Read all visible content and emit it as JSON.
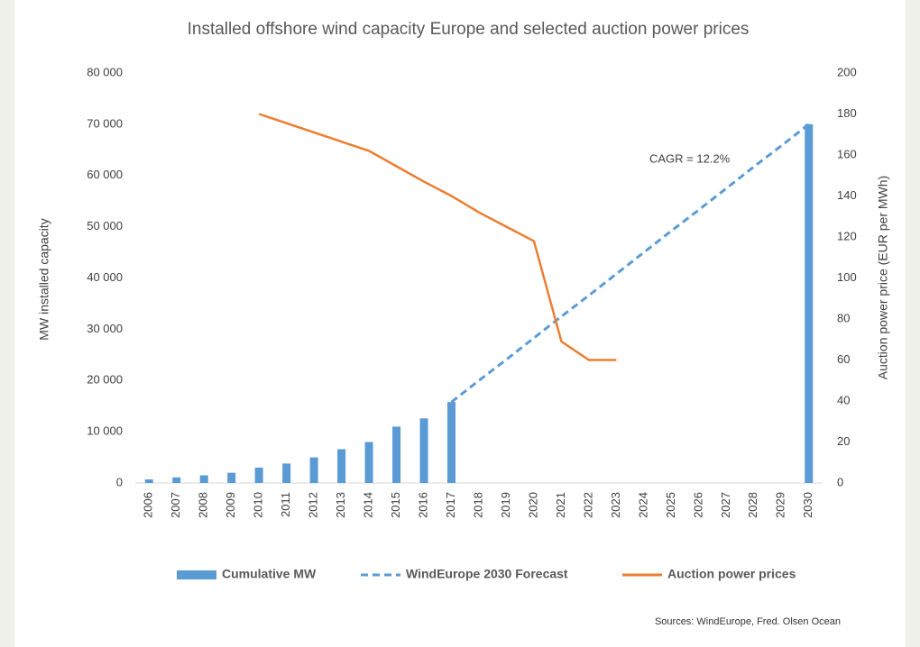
{
  "chart_data": {
    "type": "bar",
    "title": "Installed offshore wind capacity Europe and selected auction power prices",
    "y_label": "MW installed capacity",
    "y2_label": "Auction power price (EUR per MWh)",
    "annotation": "CAGR = 12.2%",
    "source": "Sources: WindEurope, Fred. Olsen Ocean",
    "categories": [
      "2006",
      "2007",
      "2008",
      "2009",
      "2010",
      "2011",
      "2012",
      "2013",
      "2014",
      "2015",
      "2016",
      "2017",
      "2018",
      "2019",
      "2020",
      "2021",
      "2022",
      "2023",
      "2024",
      "2025",
      "2026",
      "2027",
      "2028",
      "2029",
      "2030"
    ],
    "series": [
      {
        "name": "Cumulative MW",
        "type": "bar",
        "color": "#5b9bd5",
        "values": [
          700,
          1100,
          1500,
          2000,
          3000,
          3800,
          5000,
          6600,
          8000,
          11000,
          12600,
          15800,
          null,
          null,
          null,
          null,
          null,
          null,
          null,
          null,
          null,
          null,
          null,
          null,
          70000
        ]
      },
      {
        "name": "WindEurope 2030 Forecast",
        "type": "line",
        "dashed": true,
        "color": "#5b9bd5",
        "values": [
          null,
          null,
          null,
          null,
          null,
          null,
          null,
          null,
          null,
          null,
          null,
          15800,
          20000,
          24100,
          28300,
          32500,
          36600,
          40800,
          45000,
          49200,
          53300,
          57500,
          61700,
          65800,
          70000
        ]
      },
      {
        "name": "Auction power prices",
        "type": "line",
        "axis": "y2",
        "color": "#ed7d31",
        "values": [
          null,
          null,
          null,
          null,
          180,
          175.5,
          171,
          166.5,
          162,
          154.5,
          147,
          140,
          132,
          125,
          118,
          69,
          60,
          60,
          null,
          null,
          null,
          null,
          null,
          null,
          null
        ]
      }
    ],
    "ylim": [
      0,
      80000
    ],
    "yticks": [
      0,
      {
        "value": 10000,
        "label": "10 000"
      },
      {
        "value": 20000,
        "label": "20 000"
      },
      {
        "value": 30000,
        "label": "30 000"
      },
      {
        "value": 40000,
        "label": "40 000"
      },
      {
        "value": 50000,
        "label": "50 000"
      },
      {
        "value": 60000,
        "label": "60 000"
      },
      {
        "value": 70000,
        "label": "70 000"
      },
      {
        "value": 80000,
        "label": "80 000"
      }
    ],
    "y2lim": [
      0,
      200
    ],
    "y2ticks": [
      0,
      20,
      40,
      60,
      80,
      100,
      120,
      140,
      160,
      180,
      200
    ],
    "grid": false,
    "legend": "bottom"
  }
}
